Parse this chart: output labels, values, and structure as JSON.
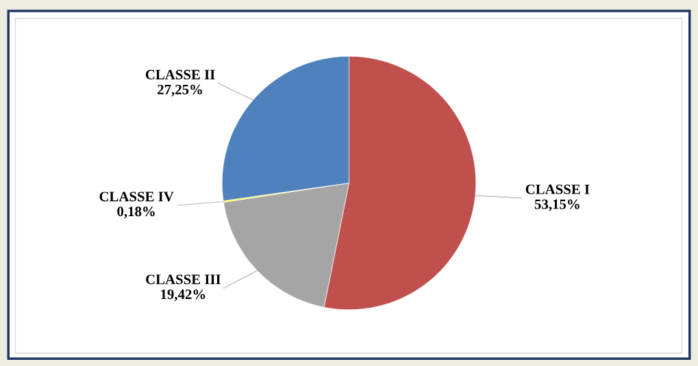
{
  "chart_data": {
    "type": "pie",
    "categories": [
      "CLASSE I",
      "CLASSE III",
      "CLASSE IV",
      "CLASSE II"
    ],
    "values": [
      53.15,
      19.42,
      0.18,
      27.25
    ],
    "value_labels": [
      "53,15%",
      "19,42%",
      "0,18%",
      "27,25%"
    ],
    "colors": [
      "#c0504d",
      "#a5a5a5",
      "#ffff00",
      "#4f81bd"
    ],
    "legend": false
  }
}
